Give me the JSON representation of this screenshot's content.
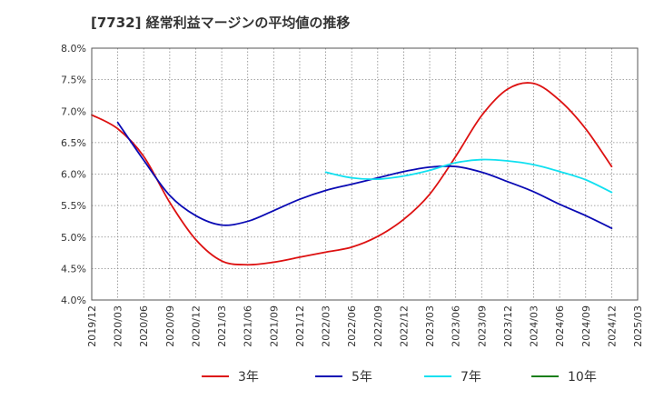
{
  "title": "[7732]  経常利益マージンの平均値の推移",
  "colors": {
    "background": "#ffffff",
    "grid": "#888888",
    "axis": "#555555",
    "series_3": "#dd1111",
    "series_5": "#0a0ab4",
    "series_7": "#11e0f0",
    "series_10": "#1a7f1a"
  },
  "chart_data": {
    "type": "line",
    "title": "[7732]  経常利益マージンの平均値の推移",
    "ylim": [
      4.0,
      8.0
    ],
    "y_ticks": [
      4.0,
      4.5,
      5.0,
      5.5,
      6.0,
      6.5,
      7.0,
      7.5,
      8.0
    ],
    "y_tick_labels": [
      "4.0%",
      "4.5%",
      "5.0%",
      "5.5%",
      "6.0%",
      "6.5%",
      "7.0%",
      "7.5%",
      "8.0%"
    ],
    "x_tick_labels": [
      "2019/12",
      "2020/03",
      "2020/06",
      "2020/09",
      "2020/12",
      "2021/03",
      "2021/06",
      "2021/09",
      "2021/12",
      "2022/03",
      "2022/06",
      "2022/09",
      "2022/12",
      "2023/03",
      "2023/06",
      "2023/09",
      "2023/12",
      "2024/03",
      "2024/06",
      "2024/09",
      "2024/12",
      "2025/03"
    ],
    "grid": true,
    "grid_style": "dotted",
    "legend_position": "bottom",
    "series": [
      {
        "name": "3年",
        "color": "#dd1111",
        "x": [
          "2019/12",
          "2020/03",
          "2020/06",
          "2020/09",
          "2020/12",
          "2021/03",
          "2021/06",
          "2021/09",
          "2021/12",
          "2022/03",
          "2022/06",
          "2022/09",
          "2022/12",
          "2023/03",
          "2023/06",
          "2023/09",
          "2023/12",
          "2024/03",
          "2024/06",
          "2024/09",
          "2024/12"
        ],
        "values": [
          6.94,
          6.72,
          6.28,
          5.55,
          4.96,
          4.62,
          4.56,
          4.6,
          4.68,
          4.76,
          4.84,
          5.01,
          5.28,
          5.68,
          6.28,
          6.93,
          7.35,
          7.44,
          7.17,
          6.72,
          6.12
        ]
      },
      {
        "name": "5年",
        "color": "#0a0ab4",
        "x": [
          "2020/03",
          "2020/06",
          "2020/09",
          "2020/12",
          "2021/03",
          "2021/06",
          "2021/09",
          "2021/12",
          "2022/03",
          "2022/06",
          "2022/09",
          "2022/12",
          "2023/03",
          "2023/06",
          "2023/09",
          "2023/12",
          "2024/03",
          "2024/06",
          "2024/09",
          "2024/12"
        ],
        "values": [
          6.82,
          6.22,
          5.66,
          5.34,
          5.19,
          5.25,
          5.42,
          5.6,
          5.74,
          5.84,
          5.94,
          6.04,
          6.11,
          6.12,
          6.03,
          5.88,
          5.72,
          5.52,
          5.34,
          5.14
        ]
      },
      {
        "name": "7年",
        "color": "#11e0f0",
        "x": [
          "2022/03",
          "2022/06",
          "2022/09",
          "2022/12",
          "2023/03",
          "2023/06",
          "2023/09",
          "2023/12",
          "2024/03",
          "2024/06",
          "2024/09",
          "2024/12"
        ],
        "values": [
          6.03,
          5.94,
          5.92,
          5.97,
          6.06,
          6.18,
          6.23,
          6.21,
          6.15,
          6.04,
          5.91,
          5.71
        ]
      },
      {
        "name": "10年",
        "color": "#1a7f1a",
        "x": [],
        "values": []
      }
    ]
  }
}
